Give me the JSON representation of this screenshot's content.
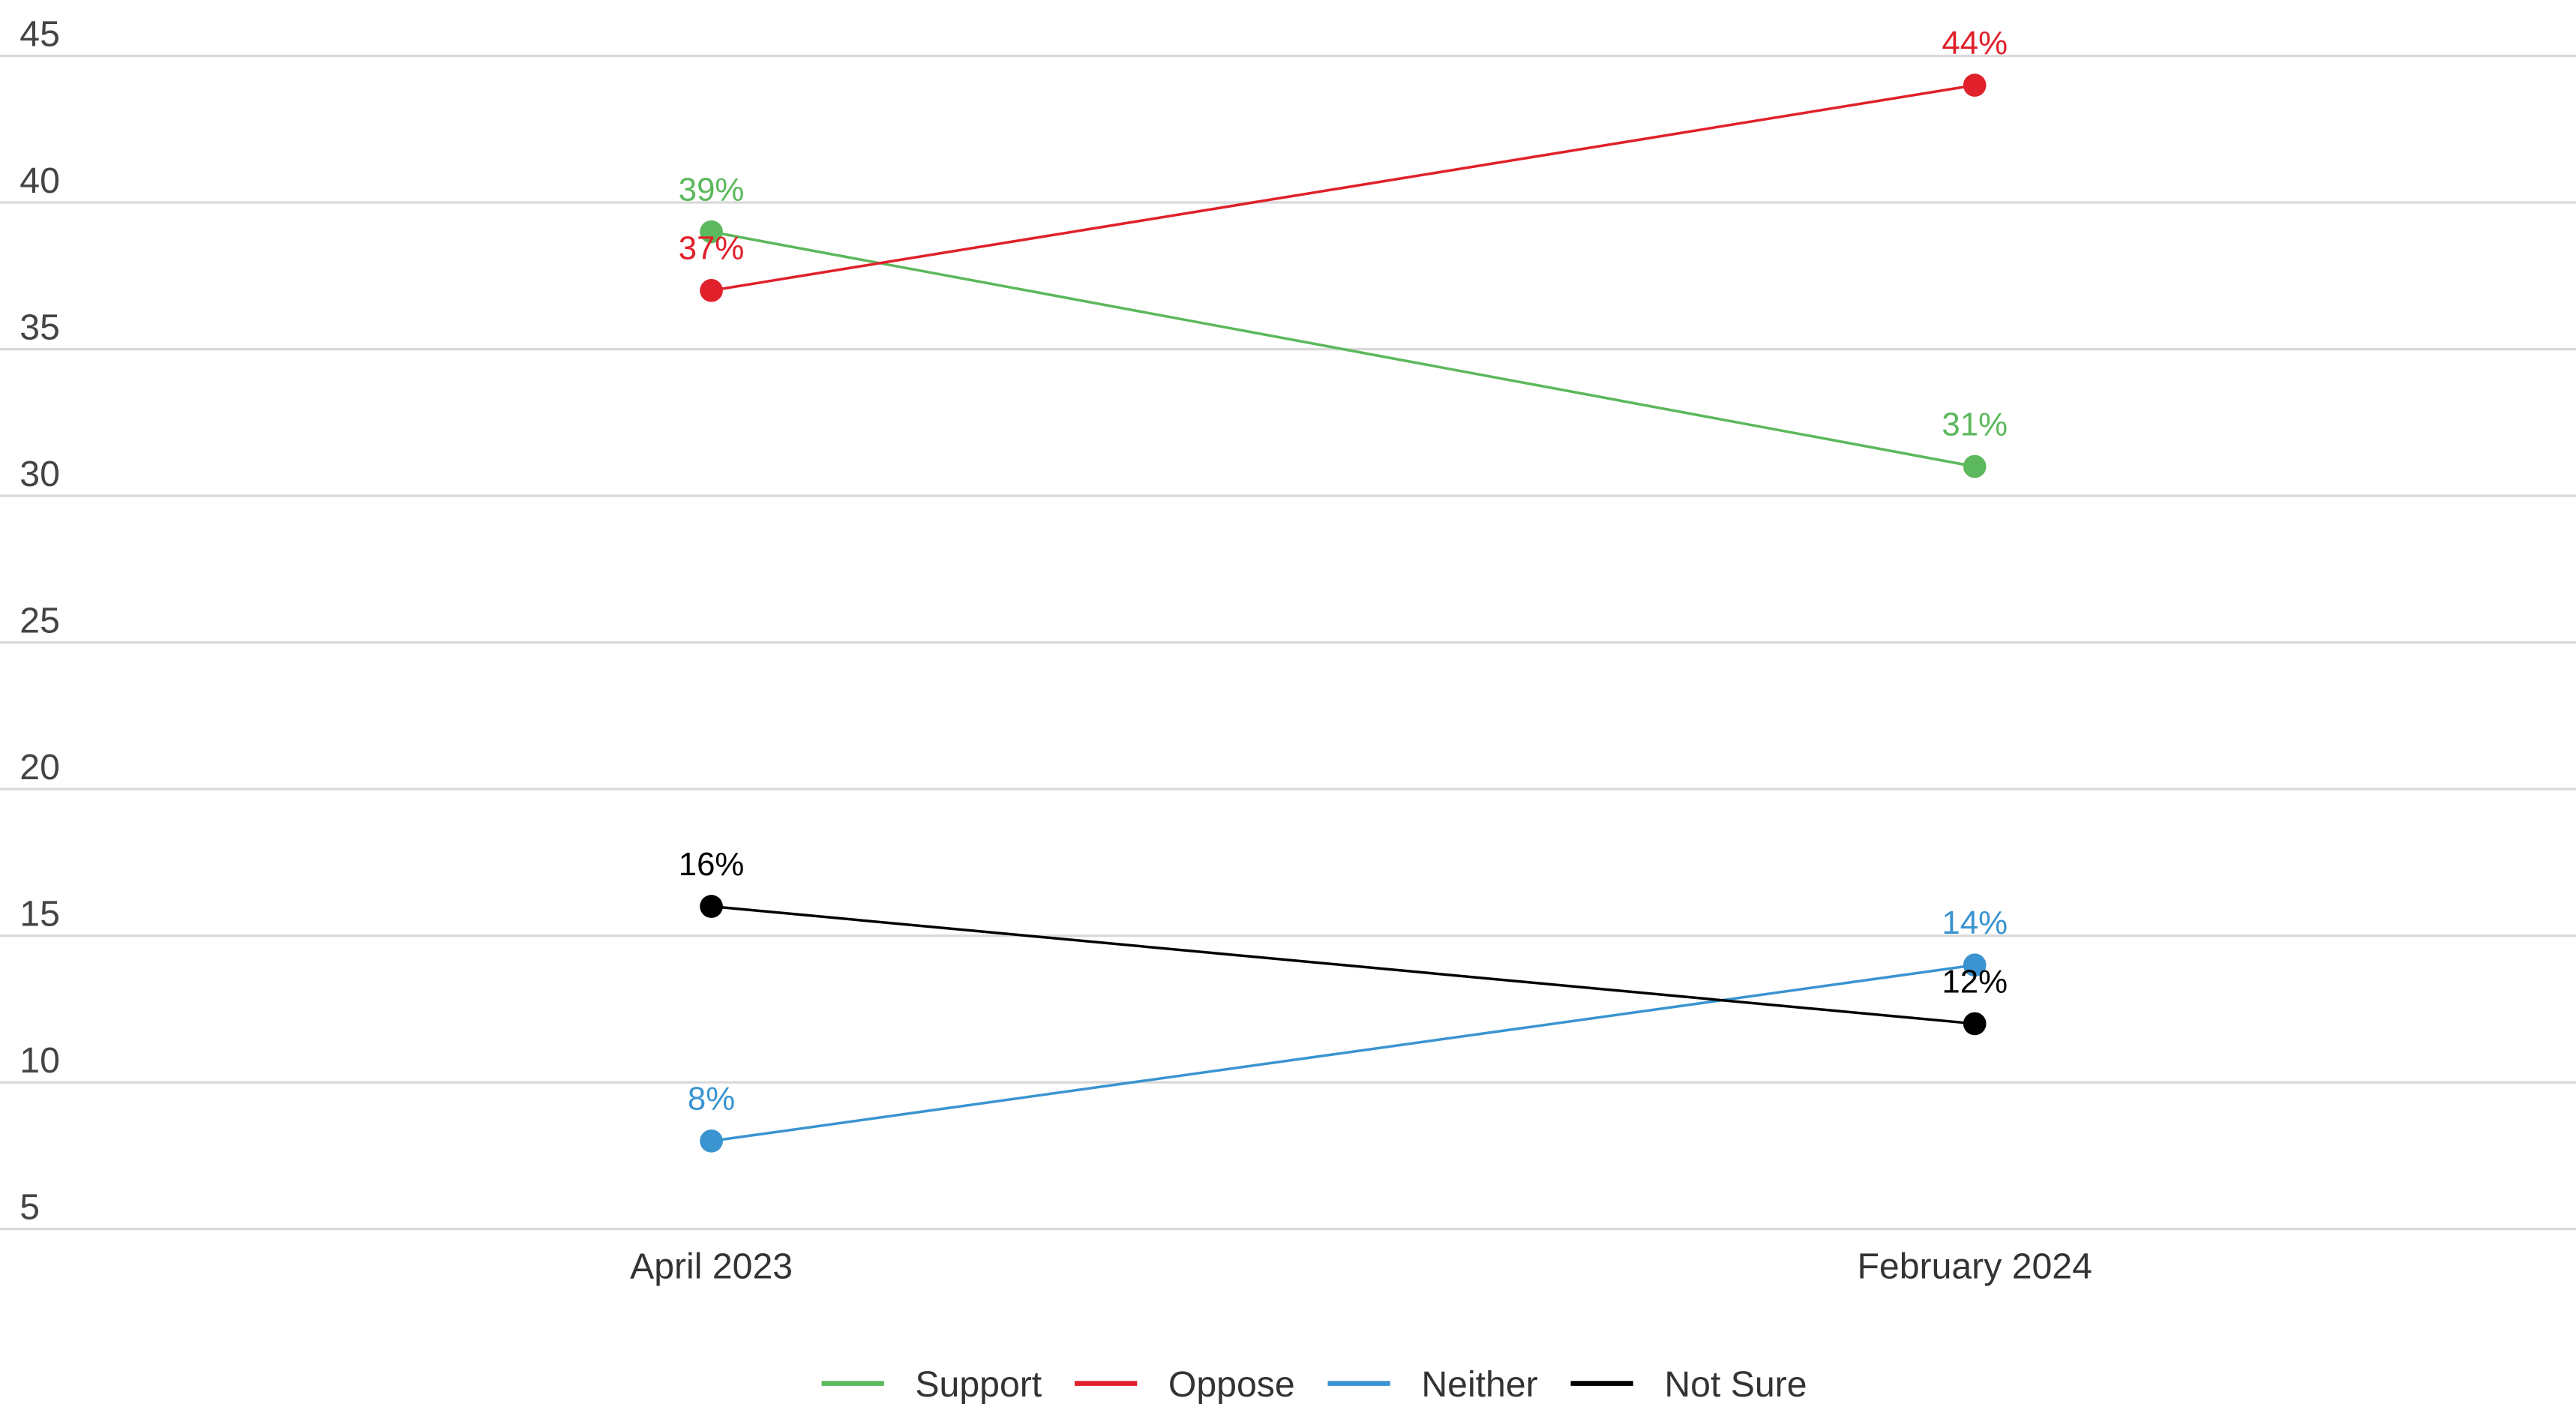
{
  "chart_data": {
    "type": "line",
    "categories": [
      "April 2023",
      "February 2024"
    ],
    "series": [
      {
        "name": "Support",
        "color": "#5cb85c",
        "values": [
          39,
          31
        ],
        "value_labels": [
          "39%",
          "31%"
        ]
      },
      {
        "name": "Oppose",
        "color": "#e0202a",
        "values": [
          37,
          44
        ],
        "value_labels": [
          "37%",
          "44%"
        ]
      },
      {
        "name": "Neither",
        "color": "#3a94d0",
        "values": [
          8,
          14
        ],
        "value_labels": [
          "8%",
          "14%"
        ]
      },
      {
        "name": "Not Sure",
        "color": "#000000",
        "values": [
          16,
          12
        ],
        "value_labels": [
          "16%",
          "12%"
        ]
      }
    ],
    "ylim": [
      5,
      45
    ],
    "yticks": [
      5,
      10,
      15,
      20,
      25,
      30,
      35,
      40,
      45
    ],
    "grid": true,
    "legend": "bottom"
  }
}
